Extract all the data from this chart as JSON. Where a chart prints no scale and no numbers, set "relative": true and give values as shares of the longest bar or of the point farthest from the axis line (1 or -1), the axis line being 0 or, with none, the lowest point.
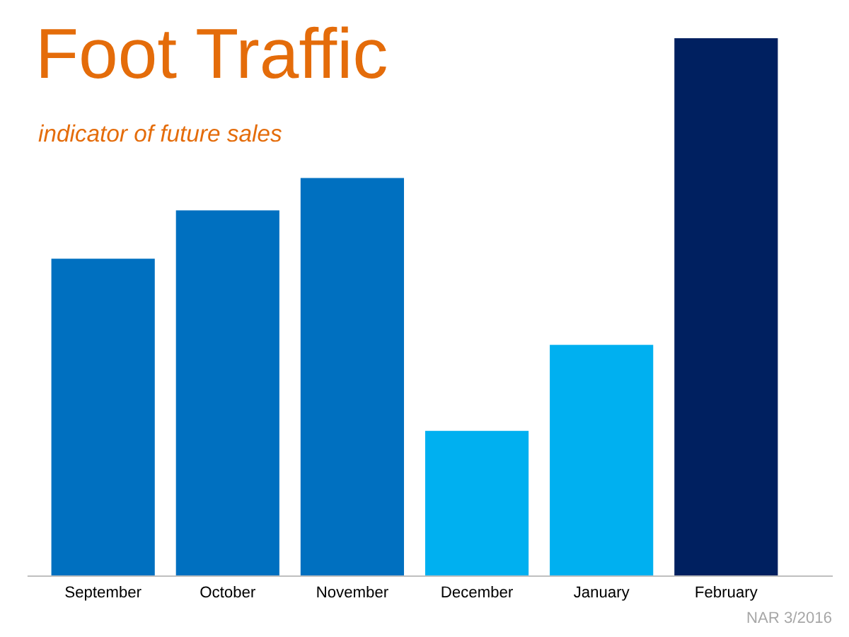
{
  "chart_data": {
    "type": "bar",
    "title": "Foot Traffic",
    "subtitle": "indicator of future sales",
    "categories": [
      "September",
      "October",
      "November",
      "December",
      "January",
      "February"
    ],
    "values": [
      0.59,
      0.68,
      0.74,
      0.27,
      0.43,
      1
    ],
    "colors": [
      "#0070c0",
      "#0070c0",
      "#0070c0",
      "#00b0f0",
      "#00b0f0",
      "#002060"
    ],
    "relative": true,
    "grid": false,
    "legend": false,
    "annotations": [
      "NAR 3/2016"
    ]
  }
}
